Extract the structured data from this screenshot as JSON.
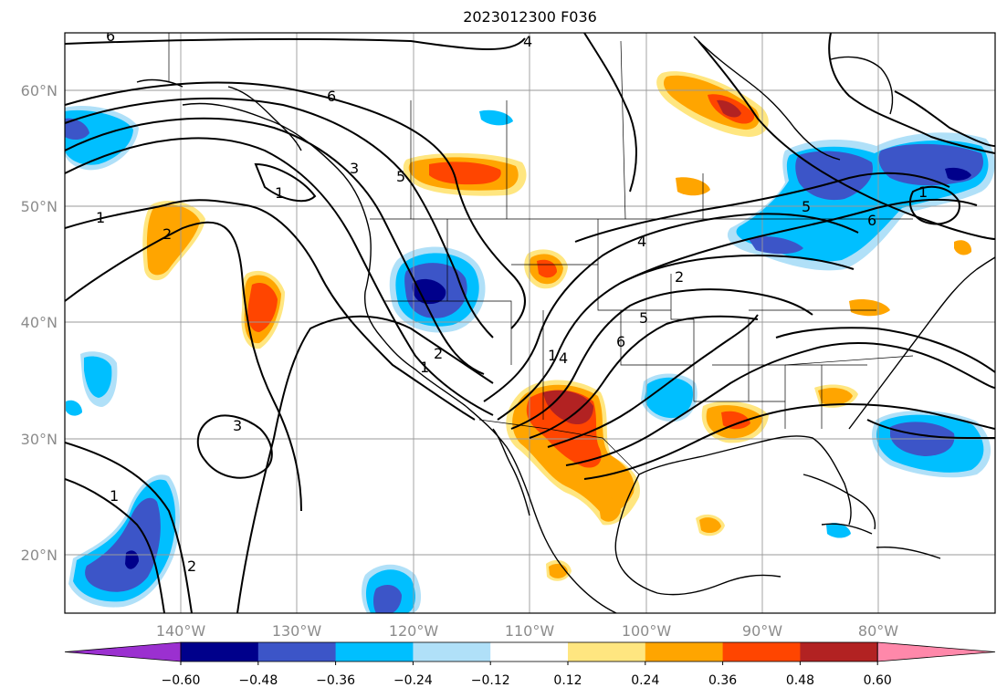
{
  "title": "2023012300 F036",
  "lat_labels": [
    "60°N",
    "50°N",
    "40°N",
    "30°N",
    "20°N"
  ],
  "lon_labels": [
    "140°W",
    "130°W",
    "120°W",
    "110°W",
    "100°W",
    "90°W",
    "80°W"
  ],
  "colorbar": {
    "tick_labels": [
      "−0.60",
      "−0.48",
      "−0.36",
      "−0.24",
      "−0.12",
      "0.12",
      "0.24",
      "0.36",
      "0.48",
      "0.60"
    ],
    "colors": [
      "#9b30d0",
      "#00008b",
      "#3c55c8",
      "#00bfff",
      "#b0e0f8",
      "#ffffff",
      "#ffe680",
      "#ffa500",
      "#ff4500",
      "#b22222",
      "#ff88aa"
    ]
  },
  "contour_labels": [
    "6",
    "4",
    "6",
    "3",
    "5",
    "1",
    "1",
    "2",
    "1",
    "2",
    "1",
    "3",
    "1",
    "2",
    "4",
    "2",
    "5",
    "6",
    "4",
    "5",
    "6",
    "1"
  ],
  "chart_data": {
    "type": "map",
    "valid": "2023012300 F036",
    "region_lat": [
      15,
      65
    ],
    "region_lon": [
      -150,
      -70
    ],
    "filled_scale": [
      -0.6,
      -0.48,
      -0.36,
      -0.24,
      -0.12,
      0.12,
      0.24,
      0.36,
      0.48,
      0.6
    ]
  }
}
